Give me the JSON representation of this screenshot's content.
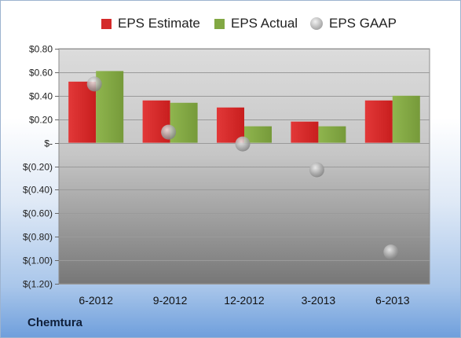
{
  "company": "Chemtura",
  "colors": {
    "estimate": "#d42a2a",
    "actual": "#82a843",
    "gaap": "#a6a6a6"
  },
  "chart_data": {
    "type": "bar",
    "categories": [
      "6-2012",
      "9-2012",
      "12-2012",
      "3-2013",
      "6-2013"
    ],
    "series": [
      {
        "name": "EPS Estimate",
        "kind": "bar",
        "values": [
          0.52,
          0.36,
          0.3,
          0.18,
          0.36
        ]
      },
      {
        "name": "EPS Actual",
        "kind": "bar",
        "values": [
          0.61,
          0.34,
          0.14,
          0.14,
          0.4
        ]
      },
      {
        "name": "EPS GAAP",
        "kind": "scatter",
        "values": [
          0.5,
          0.09,
          -0.01,
          -0.23,
          -0.93
        ]
      }
    ],
    "ylim": [
      -1.2,
      0.8
    ],
    "yticks": [
      {
        "value": 0.8,
        "label": "$0.80"
      },
      {
        "value": 0.6,
        "label": "$0.60"
      },
      {
        "value": 0.4,
        "label": "$0.40"
      },
      {
        "value": 0.2,
        "label": "$0.20"
      },
      {
        "value": 0.0,
        "label": "$-"
      },
      {
        "value": -0.2,
        "label": "$(0.20)"
      },
      {
        "value": -0.4,
        "label": "$(0.40)"
      },
      {
        "value": -0.6,
        "label": "$(0.60)"
      },
      {
        "value": -0.8,
        "label": "$(0.80)"
      },
      {
        "value": -1.0,
        "label": "$(1.00)"
      },
      {
        "value": -1.2,
        "label": "$(1.20)"
      }
    ],
    "grid": true,
    "legend": "top"
  }
}
